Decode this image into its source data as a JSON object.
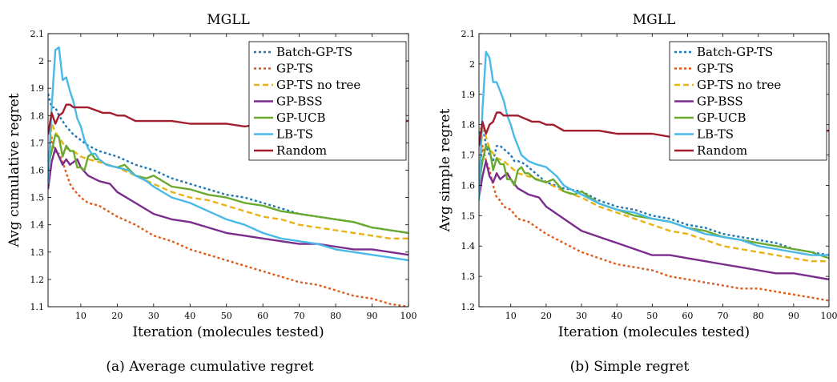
{
  "figure": {
    "captions": [
      "(a)  Average cumulative regret",
      "(b)  Simple regret"
    ]
  },
  "legend_order": [
    "Batch-GP-TS",
    "GP-TS",
    "GP-TS no tree",
    "GP-BSS",
    "GP-UCB",
    "LB-TS",
    "Random"
  ],
  "chart_data": [
    {
      "type": "line",
      "title": "MGLL",
      "xlabel": "Iteration (molecules tested)",
      "ylabel": "Avg cumulative regret",
      "xlim": [
        1,
        100
      ],
      "ylim": [
        1.1,
        2.1
      ],
      "xticks": [
        10,
        20,
        30,
        40,
        50,
        60,
        70,
        80,
        90,
        100
      ],
      "yticks": [
        1.1,
        1.2,
        1.3,
        1.4,
        1.5,
        1.6,
        1.7,
        1.8,
        1.9,
        2.0,
        2.1
      ],
      "ytick_labels": [
        "1.1",
        "1.2",
        "1.3",
        "1.4",
        "1.5",
        "1.6",
        "1.7",
        "1.8",
        "1.9",
        "2",
        "2.1"
      ],
      "legend_position": "top-right",
      "grid": false,
      "series": [
        {
          "name": "Batch-GP-TS",
          "color": "#1f77b4",
          "style": "dotted",
          "x": [
            1,
            2,
            3,
            4,
            6,
            8,
            10,
            12,
            15,
            20,
            25,
            30,
            35,
            40,
            45,
            50,
            55,
            60,
            65,
            70,
            75,
            80,
            85,
            90,
            95,
            100
          ],
          "y": [
            1.88,
            1.83,
            1.83,
            1.8,
            1.76,
            1.73,
            1.71,
            1.69,
            1.67,
            1.65,
            1.62,
            1.6,
            1.57,
            1.55,
            1.53,
            1.51,
            1.5,
            1.48,
            1.46,
            1.44,
            1.43,
            1.42,
            1.41,
            1.39,
            1.38,
            1.37
          ]
        },
        {
          "name": "GP-TS",
          "color": "#e05a1b",
          "style": "dotted",
          "x": [
            1,
            2,
            3,
            4,
            5,
            6,
            7,
            8,
            10,
            12,
            15,
            20,
            25,
            30,
            35,
            40,
            45,
            50,
            55,
            60,
            65,
            70,
            75,
            80,
            85,
            90,
            95,
            100
          ],
          "y": [
            1.63,
            1.72,
            1.66,
            1.66,
            1.63,
            1.59,
            1.55,
            1.53,
            1.5,
            1.48,
            1.47,
            1.43,
            1.4,
            1.36,
            1.34,
            1.31,
            1.29,
            1.27,
            1.25,
            1.23,
            1.21,
            1.19,
            1.18,
            1.16,
            1.14,
            1.13,
            1.11,
            1.1
          ]
        },
        {
          "name": "GP-TS no tree",
          "color": "#e8b219",
          "style": "dashed",
          "x": [
            1,
            2,
            3,
            4,
            6,
            8,
            10,
            12,
            15,
            20,
            25,
            30,
            35,
            40,
            45,
            50,
            55,
            60,
            65,
            70,
            75,
            80,
            85,
            90,
            95,
            100
          ],
          "y": [
            1.58,
            1.77,
            1.74,
            1.72,
            1.68,
            1.67,
            1.65,
            1.64,
            1.63,
            1.61,
            1.58,
            1.55,
            1.52,
            1.5,
            1.49,
            1.47,
            1.45,
            1.43,
            1.42,
            1.4,
            1.39,
            1.38,
            1.37,
            1.36,
            1.35,
            1.35
          ]
        },
        {
          "name": "GP-BSS",
          "color": "#7b2d8e",
          "style": "solid",
          "x": [
            1,
            2,
            3,
            4,
            5,
            6,
            7,
            8,
            9,
            10,
            12,
            15,
            18,
            20,
            25,
            30,
            35,
            40,
            45,
            50,
            55,
            60,
            65,
            70,
            75,
            80,
            85,
            90,
            95,
            100
          ],
          "y": [
            1.53,
            1.63,
            1.68,
            1.65,
            1.62,
            1.64,
            1.62,
            1.63,
            1.64,
            1.61,
            1.58,
            1.56,
            1.55,
            1.52,
            1.48,
            1.44,
            1.42,
            1.41,
            1.39,
            1.37,
            1.36,
            1.35,
            1.34,
            1.33,
            1.33,
            1.32,
            1.31,
            1.31,
            1.3,
            1.29
          ]
        },
        {
          "name": "GP-UCB",
          "color": "#6aaa2e",
          "style": "solid",
          "x": [
            1,
            2,
            3,
            4,
            5,
            6,
            7,
            8,
            9,
            10,
            11,
            12,
            13,
            14,
            15,
            17,
            20,
            22,
            25,
            28,
            30,
            35,
            40,
            45,
            50,
            55,
            60,
            65,
            70,
            75,
            80,
            85,
            90,
            95,
            100
          ],
          "y": [
            1.61,
            1.67,
            1.73,
            1.72,
            1.65,
            1.69,
            1.67,
            1.67,
            1.61,
            1.61,
            1.6,
            1.65,
            1.66,
            1.64,
            1.64,
            1.62,
            1.61,
            1.62,
            1.58,
            1.57,
            1.58,
            1.54,
            1.53,
            1.51,
            1.5,
            1.48,
            1.47,
            1.45,
            1.44,
            1.43,
            1.42,
            1.41,
            1.39,
            1.38,
            1.37
          ]
        },
        {
          "name": "LB-TS",
          "color": "#4ab9e8",
          "style": "solid",
          "x": [
            1,
            2,
            3,
            4,
            5,
            6,
            7,
            8,
            9,
            10,
            11,
            12,
            13,
            14,
            15,
            17,
            20,
            23,
            25,
            28,
            30,
            35,
            40,
            45,
            50,
            55,
            60,
            65,
            70,
            75,
            80,
            85,
            90,
            95,
            100
          ],
          "y": [
            1.55,
            1.83,
            2.04,
            2.05,
            1.93,
            1.94,
            1.89,
            1.85,
            1.79,
            1.76,
            1.71,
            1.68,
            1.66,
            1.66,
            1.64,
            1.62,
            1.61,
            1.6,
            1.58,
            1.56,
            1.54,
            1.5,
            1.48,
            1.45,
            1.42,
            1.4,
            1.37,
            1.35,
            1.34,
            1.33,
            1.31,
            1.3,
            1.29,
            1.28,
            1.27
          ]
        },
        {
          "name": "Random",
          "color": "#a31d2f",
          "style": "solid",
          "x": [
            1,
            2,
            3,
            4,
            5,
            6,
            7,
            8,
            10,
            12,
            14,
            16,
            18,
            20,
            22,
            25,
            30,
            35,
            40,
            45,
            50,
            55,
            60,
            65,
            70,
            75,
            80,
            85,
            90,
            95,
            100
          ],
          "y": [
            1.73,
            1.81,
            1.77,
            1.8,
            1.81,
            1.84,
            1.84,
            1.83,
            1.83,
            1.83,
            1.82,
            1.81,
            1.81,
            1.8,
            1.8,
            1.78,
            1.78,
            1.78,
            1.77,
            1.77,
            1.77,
            1.76,
            1.77,
            1.77,
            1.77,
            1.78,
            1.78,
            1.78,
            1.78,
            1.78,
            1.78
          ]
        }
      ]
    },
    {
      "type": "line",
      "title": "MGLL",
      "xlabel": "Iteration (molecules tested)",
      "ylabel": "Avg simple regret",
      "xlim": [
        1,
        100
      ],
      "ylim": [
        1.2,
        2.1
      ],
      "xticks": [
        10,
        20,
        30,
        40,
        50,
        60,
        70,
        80,
        90,
        100
      ],
      "yticks": [
        1.2,
        1.3,
        1.4,
        1.5,
        1.6,
        1.7,
        1.8,
        1.9,
        2.0,
        2.1
      ],
      "ytick_labels": [
        "1.2",
        "1.3",
        "1.4",
        "1.5",
        "1.6",
        "1.7",
        "1.8",
        "1.9",
        "2",
        "2.1"
      ],
      "legend_position": "top-right",
      "grid": false,
      "series": [
        {
          "name": "Batch-GP-TS",
          "color": "#1f77b4",
          "style": "dotted",
          "x": [
            1,
            2,
            3,
            4,
            5,
            6,
            7,
            8,
            9,
            10,
            11,
            12,
            14,
            16,
            18,
            20,
            25,
            30,
            35,
            40,
            45,
            50,
            55,
            60,
            65,
            70,
            75,
            80,
            85,
            90,
            95,
            100
          ],
          "y": [
            1.77,
            1.8,
            1.73,
            1.7,
            1.68,
            1.73,
            1.73,
            1.72,
            1.71,
            1.7,
            1.68,
            1.68,
            1.67,
            1.65,
            1.63,
            1.61,
            1.59,
            1.58,
            1.55,
            1.53,
            1.52,
            1.5,
            1.49,
            1.47,
            1.46,
            1.44,
            1.43,
            1.42,
            1.41,
            1.39,
            1.38,
            1.37
          ]
        },
        {
          "name": "GP-TS",
          "color": "#e05a1b",
          "style": "dotted",
          "x": [
            1,
            2,
            3,
            4,
            5,
            6,
            7,
            8,
            10,
            12,
            15,
            20,
            25,
            30,
            35,
            40,
            45,
            50,
            55,
            60,
            65,
            70,
            75,
            80,
            85,
            90,
            95,
            100
          ],
          "y": [
            1.63,
            1.73,
            1.68,
            1.65,
            1.6,
            1.56,
            1.55,
            1.53,
            1.52,
            1.49,
            1.48,
            1.44,
            1.41,
            1.38,
            1.36,
            1.34,
            1.33,
            1.32,
            1.3,
            1.29,
            1.28,
            1.27,
            1.26,
            1.26,
            1.25,
            1.24,
            1.23,
            1.22
          ]
        },
        {
          "name": "GP-TS no tree",
          "color": "#e8b219",
          "style": "dashed",
          "x": [
            1,
            2,
            3,
            4,
            6,
            8,
            10,
            12,
            15,
            20,
            25,
            30,
            35,
            40,
            45,
            50,
            55,
            60,
            65,
            70,
            75,
            80,
            85,
            90,
            95,
            100
          ],
          "y": [
            1.6,
            1.8,
            1.76,
            1.72,
            1.69,
            1.68,
            1.66,
            1.64,
            1.63,
            1.61,
            1.58,
            1.56,
            1.53,
            1.51,
            1.49,
            1.47,
            1.45,
            1.44,
            1.42,
            1.4,
            1.39,
            1.38,
            1.37,
            1.36,
            1.35,
            1.35
          ]
        },
        {
          "name": "GP-BSS",
          "color": "#7b2d8e",
          "style": "solid",
          "x": [
            1,
            2,
            3,
            4,
            5,
            6,
            7,
            8,
            9,
            10,
            12,
            15,
            18,
            20,
            25,
            30,
            35,
            40,
            45,
            50,
            55,
            60,
            65,
            70,
            75,
            80,
            85,
            90,
            95,
            100
          ],
          "y": [
            1.56,
            1.63,
            1.68,
            1.63,
            1.61,
            1.64,
            1.62,
            1.63,
            1.64,
            1.62,
            1.59,
            1.57,
            1.56,
            1.53,
            1.49,
            1.45,
            1.43,
            1.41,
            1.39,
            1.37,
            1.37,
            1.36,
            1.35,
            1.34,
            1.33,
            1.32,
            1.31,
            1.31,
            1.3,
            1.29
          ]
        },
        {
          "name": "GP-UCB",
          "color": "#6aaa2e",
          "style": "solid",
          "x": [
            1,
            2,
            3,
            4,
            5,
            6,
            7,
            8,
            9,
            10,
            11,
            12,
            13,
            14,
            15,
            17,
            20,
            22,
            25,
            28,
            30,
            35,
            40,
            45,
            50,
            55,
            60,
            65,
            70,
            75,
            80,
            85,
            90,
            95,
            100
          ],
          "y": [
            1.6,
            1.68,
            1.73,
            1.72,
            1.65,
            1.69,
            1.67,
            1.67,
            1.62,
            1.62,
            1.6,
            1.65,
            1.66,
            1.64,
            1.64,
            1.62,
            1.61,
            1.62,
            1.58,
            1.57,
            1.58,
            1.54,
            1.52,
            1.5,
            1.49,
            1.48,
            1.46,
            1.45,
            1.43,
            1.42,
            1.41,
            1.4,
            1.39,
            1.38,
            1.36
          ]
        },
        {
          "name": "LB-TS",
          "color": "#4ab9e8",
          "style": "solid",
          "x": [
            1,
            2,
            3,
            4,
            5,
            6,
            7,
            8,
            9,
            10,
            11,
            12,
            13,
            14,
            15,
            17,
            20,
            23,
            25,
            28,
            30,
            35,
            40,
            45,
            50,
            55,
            60,
            65,
            70,
            75,
            80,
            85,
            90,
            95,
            100
          ],
          "y": [
            1.55,
            1.85,
            2.04,
            2.02,
            1.94,
            1.94,
            1.91,
            1.88,
            1.83,
            1.8,
            1.76,
            1.73,
            1.7,
            1.69,
            1.68,
            1.67,
            1.66,
            1.63,
            1.6,
            1.58,
            1.57,
            1.54,
            1.52,
            1.51,
            1.49,
            1.48,
            1.46,
            1.44,
            1.43,
            1.42,
            1.4,
            1.39,
            1.38,
            1.37,
            1.37
          ]
        },
        {
          "name": "Random",
          "color": "#a31d2f",
          "style": "solid",
          "x": [
            1,
            2,
            3,
            4,
            5,
            6,
            7,
            8,
            10,
            12,
            14,
            16,
            18,
            20,
            22,
            25,
            30,
            35,
            40,
            45,
            50,
            55,
            60,
            65,
            70,
            75,
            80,
            85,
            90,
            95,
            100
          ],
          "y": [
            1.73,
            1.81,
            1.77,
            1.8,
            1.81,
            1.84,
            1.84,
            1.83,
            1.83,
            1.83,
            1.82,
            1.81,
            1.81,
            1.8,
            1.8,
            1.78,
            1.78,
            1.78,
            1.77,
            1.77,
            1.77,
            1.76,
            1.77,
            1.77,
            1.77,
            1.78,
            1.78,
            1.78,
            1.78,
            1.78,
            1.78
          ]
        }
      ]
    }
  ]
}
